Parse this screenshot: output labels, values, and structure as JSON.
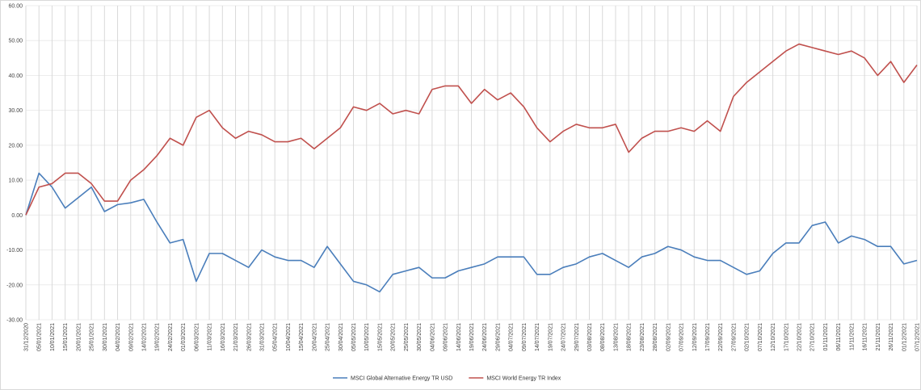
{
  "chart_data": {
    "type": "line",
    "categories": [
      "31/12/2020",
      "05/01/2021",
      "10/01/2021",
      "15/01/2021",
      "20/01/2021",
      "25/01/2021",
      "30/01/2021",
      "04/02/2021",
      "09/02/2021",
      "14/02/2021",
      "19/02/2021",
      "24/02/2021",
      "01/03/2021",
      "06/03/2021",
      "11/03/2021",
      "16/03/2021",
      "21/03/2021",
      "26/03/2021",
      "31/03/2021",
      "05/04/2021",
      "10/04/2021",
      "15/04/2021",
      "20/04/2021",
      "25/04/2021",
      "30/04/2021",
      "05/05/2021",
      "10/05/2021",
      "15/05/2021",
      "20/05/2021",
      "25/05/2021",
      "30/05/2021",
      "04/06/2021",
      "09/06/2021",
      "14/06/2021",
      "19/06/2021",
      "24/06/2021",
      "29/06/2021",
      "04/07/2021",
      "09/07/2021",
      "14/07/2021",
      "19/07/2021",
      "24/07/2021",
      "29/07/2021",
      "03/08/2021",
      "08/08/2021",
      "13/08/2021",
      "18/08/2021",
      "23/08/2021",
      "28/08/2021",
      "02/09/2021",
      "07/09/2021",
      "12/09/2021",
      "17/09/2021",
      "22/09/2021",
      "27/09/2021",
      "02/10/2021",
      "07/10/2021",
      "12/10/2021",
      "17/10/2021",
      "22/10/2021",
      "27/10/2021",
      "01/11/2021",
      "06/11/2021",
      "11/11/2021",
      "16/11/2021",
      "21/11/2021",
      "26/11/2021",
      "01/12/2021",
      "07/12/2021"
    ],
    "series": [
      {
        "name": "MSCI Global Alternative Energy TR USD",
        "color": "#4a7ebb",
        "values": [
          0,
          12,
          8,
          2,
          5,
          8,
          1,
          3,
          3.5,
          4.5,
          -2,
          -8,
          -7,
          -19,
          -11,
          -11,
          -13,
          -15,
          -10,
          -12,
          -13,
          -13,
          -15,
          -9,
          -14,
          -19,
          -20,
          -22,
          -17,
          -16,
          -15,
          -18,
          -18,
          -16,
          -15,
          -14,
          -12,
          -12,
          -12,
          -17,
          -17,
          -15,
          -14,
          -12,
          -11,
          -13,
          -15,
          -12,
          -11,
          -9,
          -10,
          -12,
          -13,
          -13,
          -15,
          -17,
          -16,
          -11,
          -8,
          -8,
          -3,
          -2,
          -8,
          -6,
          -7,
          -9,
          -9,
          -14,
          -13
        ]
      },
      {
        "name": "MSCI World Energy TR Index",
        "color": "#c0504d",
        "values": [
          0,
          8,
          9,
          12,
          12,
          9,
          4,
          4,
          10,
          13,
          17,
          22,
          20,
          28,
          30,
          25,
          22,
          24,
          23,
          21,
          21,
          22,
          19,
          22,
          25,
          31,
          30,
          32,
          29,
          30,
          29,
          36,
          37,
          37,
          32,
          36,
          33,
          35,
          31,
          25,
          21,
          24,
          26,
          25,
          25,
          26,
          18,
          22,
          24,
          24,
          25,
          24,
          27,
          24,
          34,
          38,
          41,
          44,
          47,
          49,
          48,
          47,
          46,
          47,
          45,
          40,
          44,
          38,
          43
        ]
      }
    ],
    "ylim": [
      -30,
      60
    ],
    "yticks": [
      {
        "value": -30,
        "label": "-30.00"
      },
      {
        "value": -20,
        "label": "-20.00"
      },
      {
        "value": -10,
        "label": "-10.00"
      },
      {
        "value": 0,
        "label": "0.00"
      },
      {
        "value": 10,
        "label": "10.00"
      },
      {
        "value": 20,
        "label": "20.00"
      },
      {
        "value": 30,
        "label": "30.00"
      },
      {
        "value": 40,
        "label": "40.00"
      },
      {
        "value": 50,
        "label": "50.00"
      },
      {
        "value": 60,
        "label": "60.00"
      }
    ],
    "grid": true,
    "legend": "bottom"
  }
}
